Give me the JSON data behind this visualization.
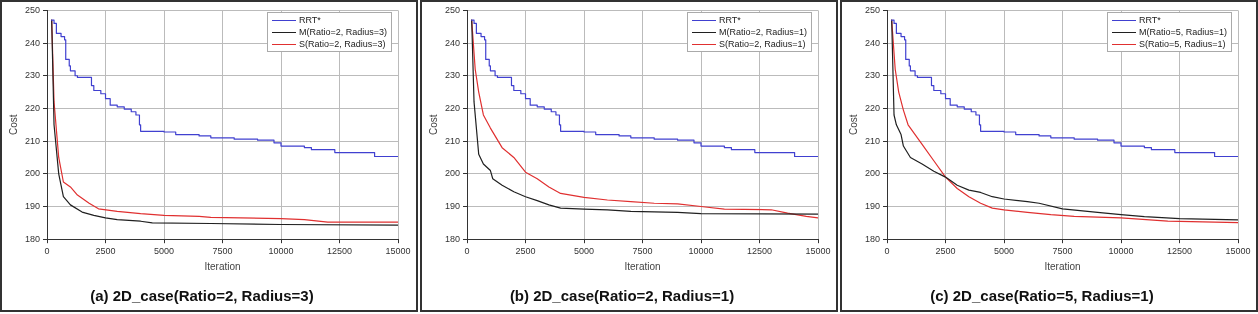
{
  "chart_data": [
    {
      "type": "line",
      "title": "(a) 2D_case(Ratio=2, Radius=3)",
      "xlabel": "Iteration",
      "ylabel": "Cost",
      "xlim": [
        0,
        15000
      ],
      "xticks": [
        0,
        2500,
        5000,
        7500,
        10000,
        12500,
        15000
      ],
      "ylim": [
        180,
        250
      ],
      "yticks": [
        180,
        190,
        200,
        210,
        220,
        230,
        240,
        250
      ],
      "grid": true,
      "legend": "top right",
      "series": [
        {
          "name": "RRT*",
          "type": "step",
          "color": "#4040d0",
          "x": [
            200,
            300,
            400,
            600,
            750,
            800,
            950,
            1000,
            1200,
            1300,
            1800,
            1900,
            2000,
            2300,
            2500,
            2700,
            3000,
            3300,
            3600,
            3800,
            3950,
            4000,
            5000,
            5500,
            6500,
            7000,
            8000,
            9000,
            9700,
            10000,
            11000,
            11300,
            12300,
            14000,
            15000
          ],
          "values": [
            247,
            246,
            243,
            242,
            241,
            235,
            233,
            231.5,
            230,
            229.5,
            229.5,
            227,
            225.5,
            224.5,
            223,
            221,
            220.5,
            219.8,
            219,
            218,
            215,
            213,
            212.8,
            212,
            211.6,
            211,
            210.6,
            210.3,
            209.5,
            208.5,
            208,
            207.4,
            206.5,
            205.3,
            205.3
          ]
        },
        {
          "name": "M(Ratio=2, Radius=3)",
          "color": "#202020",
          "x": [
            200,
            300,
            500,
            700,
            1000,
            1500,
            2000,
            2500,
            3000,
            4000,
            4500,
            7000,
            10000,
            15000
          ],
          "values": [
            247,
            215,
            200,
            193,
            190.5,
            188.3,
            187.3,
            186.5,
            186,
            185.5,
            185,
            184.8,
            184.5,
            184.3
          ]
        },
        {
          "name": "S(Ratio=2, Radius=3)",
          "color": "#e03030",
          "x": [
            200,
            300,
            500,
            700,
            1000,
            1300,
            1800,
            2200,
            3000,
            4000,
            5000,
            6500,
            7000,
            10000,
            11000,
            12000,
            15000
          ],
          "values": [
            247,
            222,
            205,
            197.5,
            196,
            193.5,
            191,
            189.3,
            188.5,
            187.8,
            187.3,
            187,
            186.7,
            186.3,
            186,
            185.2,
            185.2
          ]
        }
      ]
    },
    {
      "type": "line",
      "title": "(b) 2D_case(Ratio=2, Radius=1)",
      "xlabel": "Iteration",
      "ylabel": "Cost",
      "xlim": [
        0,
        15000
      ],
      "xticks": [
        0,
        2500,
        5000,
        7500,
        10000,
        12500,
        15000
      ],
      "ylim": [
        180,
        250
      ],
      "yticks": [
        180,
        190,
        200,
        210,
        220,
        230,
        240,
        250
      ],
      "grid": true,
      "legend": "top right",
      "series": [
        {
          "name": "RRT*",
          "type": "step",
          "color": "#4040d0",
          "x": [
            200,
            300,
            400,
            600,
            750,
            800,
            950,
            1000,
            1200,
            1300,
            1800,
            1900,
            2000,
            2300,
            2500,
            2700,
            3000,
            3300,
            3600,
            3800,
            3950,
            4000,
            5000,
            5500,
            6500,
            7000,
            8000,
            9000,
            9700,
            10000,
            11000,
            11300,
            12300,
            14000,
            15000
          ],
          "values": [
            247,
            246,
            243,
            242,
            241,
            235,
            233,
            231.5,
            230,
            229.5,
            229.5,
            227,
            225.5,
            224.5,
            223,
            221,
            220.5,
            219.8,
            219,
            218,
            215,
            213,
            212.8,
            212,
            211.6,
            211,
            210.6,
            210.3,
            209.5,
            208.5,
            208,
            207.4,
            206.5,
            205.3,
            205.3
          ]
        },
        {
          "name": "M(Ratio=2, Radius=1)",
          "color": "#202020",
          "x": [
            200,
            300,
            500,
            700,
            1000,
            1100,
            1500,
            2000,
            2500,
            3000,
            3500,
            4000,
            5000,
            6000,
            7000,
            9000,
            10000,
            15000
          ],
          "values": [
            247,
            222,
            206,
            203,
            201,
            198.5,
            196.5,
            194.5,
            193,
            191.8,
            190.5,
            189.5,
            189.2,
            189,
            188.5,
            188.2,
            187.8,
            187.7
          ]
        },
        {
          "name": "S(Ratio=2, Radius=1)",
          "color": "#e03030",
          "x": [
            200,
            350,
            500,
            700,
            1000,
            1500,
            2000,
            2500,
            3000,
            3500,
            4000,
            5000,
            6000,
            7000,
            8000,
            9000,
            10000,
            11000,
            13000,
            13700,
            14500,
            15000
          ],
          "values": [
            247,
            232,
            225,
            218,
            214,
            208,
            205,
            200.5,
            198.5,
            196,
            194,
            192.8,
            192,
            191.5,
            191,
            190.8,
            190,
            189.2,
            189,
            188,
            187,
            186.5
          ]
        }
      ]
    },
    {
      "type": "line",
      "title": "(c) 2D_case(Ratio=5, Radius=1)",
      "xlabel": "Iteration",
      "ylabel": "Cost",
      "xlim": [
        0,
        15000
      ],
      "xticks": [
        0,
        2500,
        5000,
        7500,
        10000,
        12500,
        15000
      ],
      "ylim": [
        180,
        250
      ],
      "yticks": [
        180,
        190,
        200,
        210,
        220,
        230,
        240,
        250
      ],
      "grid": true,
      "legend": "top right",
      "series": [
        {
          "name": "RRT*",
          "type": "step",
          "color": "#4040d0",
          "x": [
            200,
            300,
            400,
            600,
            750,
            800,
            950,
            1000,
            1200,
            1300,
            1800,
            1900,
            2000,
            2300,
            2500,
            2700,
            3000,
            3300,
            3600,
            3800,
            3950,
            4000,
            5000,
            5500,
            6500,
            7000,
            8000,
            9000,
            9700,
            10000,
            11000,
            11300,
            12300,
            14000,
            15000
          ],
          "values": [
            247,
            246,
            243,
            242,
            241,
            235,
            233,
            231.5,
            230,
            229.5,
            229.5,
            227,
            225.5,
            224.5,
            223,
            221,
            220.5,
            219.8,
            219,
            218,
            215,
            213,
            212.8,
            212,
            211.6,
            211,
            210.6,
            210.3,
            209.5,
            208.5,
            208,
            207.4,
            206.5,
            205.3,
            205.3
          ]
        },
        {
          "name": "M(Ratio=5, Radius=1)",
          "color": "#202020",
          "x": [
            200,
            300,
            400,
            600,
            700,
            1000,
            1500,
            2000,
            2500,
            3000,
            3500,
            4000,
            4500,
            5000,
            6000,
            6500,
            7500,
            9000,
            10000,
            11000,
            12500,
            15000
          ],
          "values": [
            247,
            218,
            215,
            212,
            208.5,
            205,
            203,
            200.8,
            199,
            196.5,
            195,
            194.3,
            193,
            192.3,
            191.5,
            191,
            189.3,
            188.2,
            187.5,
            186.9,
            186.3,
            185.9
          ]
        },
        {
          "name": "S(Ratio=5, Radius=1)",
          "color": "#e03030",
          "x": [
            200,
            350,
            500,
            700,
            900,
            1200,
            1500,
            2000,
            2500,
            3000,
            3500,
            4000,
            4500,
            5000,
            6000,
            7000,
            8000,
            10000,
            12000,
            15000
          ],
          "values": [
            247,
            232,
            225,
            219.5,
            215,
            212,
            209,
            204,
            199,
            195.5,
            193,
            191,
            189.5,
            189,
            188.2,
            187.5,
            187,
            186.5,
            185.5,
            185.1
          ]
        }
      ]
    }
  ]
}
